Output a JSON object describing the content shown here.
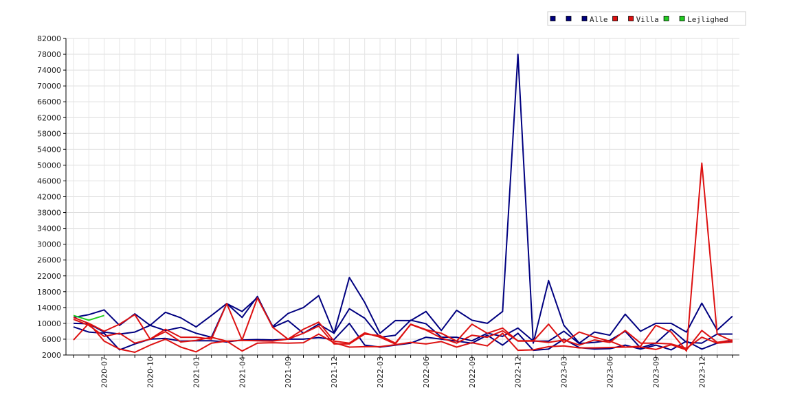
{
  "chart_data": {
    "type": "line",
    "title": "",
    "xlabel": "",
    "ylabel": "",
    "ylim": [
      2000,
      82000
    ],
    "y_ticks": [
      2000,
      6000,
      10000,
      14000,
      18000,
      22000,
      26000,
      30000,
      34000,
      38000,
      42000,
      46000,
      50000,
      54000,
      58000,
      62000,
      66000,
      70000,
      74000,
      78000,
      82000
    ],
    "x_ticks": [
      {
        "label": "2020-07",
        "index": 2
      },
      {
        "label": "2020-10",
        "index": 5
      },
      {
        "label": "2021-01",
        "index": 8
      },
      {
        "label": "2021-04",
        "index": 11
      },
      {
        "label": "2021-09",
        "index": 14
      },
      {
        "label": "2021-12",
        "index": 17
      },
      {
        "label": "2022-03",
        "index": 20
      },
      {
        "label": "2022-06",
        "index": 23
      },
      {
        "label": "2022-09",
        "index": 26
      },
      {
        "label": "2022-12",
        "index": 29
      },
      {
        "label": "2023-03",
        "index": 32
      },
      {
        "label": "2023-06",
        "index": 35
      },
      {
        "label": "2023-09",
        "index": 38
      },
      {
        "label": "2023-12",
        "index": 41
      }
    ],
    "n_points": 44,
    "grid": true,
    "legend_position": "top-right",
    "legend": [
      {
        "label": "",
        "color": "#000080"
      },
      {
        "label": "",
        "color": "#000080"
      },
      {
        "label": "Alle",
        "color": "#000080"
      },
      {
        "label": "",
        "color": "#dd1111"
      },
      {
        "label": "Villa",
        "color": "#dd1111"
      },
      {
        "label": "",
        "color": "#22cc22"
      },
      {
        "label": "Lejlighed",
        "color": "#22cc22"
      }
    ],
    "series": [
      {
        "group": "Alle",
        "color": "#000080",
        "values": [
          11500,
          12200,
          13400,
          9500,
          12400,
          9500,
          12800,
          11400,
          9100,
          12000,
          15000,
          13000,
          16500,
          9200,
          12500,
          14000,
          17000,
          7500,
          21600,
          15300,
          7500,
          10700,
          10700,
          13000,
          8200,
          13300,
          10800,
          10000,
          13000,
          78000,
          5000,
          20800,
          9500,
          5000,
          7800,
          7000,
          12300,
          8000,
          10000,
          10000,
          7800,
          15100,
          8300,
          11800
        ]
      },
      {
        "group": "Alle",
        "color": "#000080",
        "values": [
          10000,
          9900,
          7800,
          7300,
          7800,
          9500,
          8200,
          9000,
          7500,
          6500,
          15000,
          11500,
          16800,
          9000,
          10700,
          7500,
          9800,
          7500,
          13700,
          11300,
          6500,
          7000,
          10800,
          9900,
          6500,
          6500,
          5600,
          7500,
          6700,
          8800,
          5500,
          5500,
          8000,
          4900,
          5200,
          5700,
          8000,
          3800,
          5000,
          8500,
          5200,
          5000,
          7300,
          7300
        ]
      },
      {
        "group": "Alle",
        "color": "#000080",
        "values": [
          9100,
          7800,
          7500,
          3300,
          4800,
          6000,
          6200,
          5500,
          5600,
          5600,
          5300,
          5800,
          5900,
          5800,
          6000,
          6000,
          6400,
          5900,
          10000,
          4500,
          4000,
          4500,
          5000,
          6500,
          6000,
          5500,
          5000,
          7000,
          4500,
          7500,
          3200,
          3500,
          6000,
          3900,
          3500,
          3600,
          4500,
          3500,
          4500,
          3300,
          5500,
          3500,
          5000,
          5400
        ]
      },
      {
        "group": "Villa",
        "color": "#dd1111",
        "values": [
          5800,
          10000,
          8000,
          9800,
          12200,
          6000,
          8500,
          6500,
          6500,
          6000,
          15000,
          5800,
          16400,
          9000,
          6000,
          8500,
          10300,
          5500,
          5000,
          7600,
          6500,
          4800,
          9800,
          8400,
          7500,
          5500,
          9800,
          7500,
          8800,
          5500,
          5500,
          9800,
          5100,
          7800,
          6500,
          5500,
          4000,
          4200,
          9500,
          7800,
          3000,
          50500,
          7300,
          5500
        ]
      },
      {
        "group": "Villa",
        "color": "#dd1111",
        "values": [
          11500,
          10000,
          5500,
          3500,
          2700,
          4500,
          6000,
          4000,
          2800,
          5000,
          5500,
          3000,
          5000,
          5100,
          5000,
          5100,
          7300,
          5100,
          4000,
          4100,
          4100,
          4600,
          5200,
          4800,
          5400,
          4000,
          5100,
          4300,
          7500,
          3200,
          3300,
          4100,
          4300,
          3800,
          3800,
          3900,
          4000,
          4000,
          3400,
          4600,
          3300,
          8200,
          5200,
          5800
        ]
      },
      {
        "group": "Villa",
        "color": "#dd1111",
        "values": [
          11000,
          9500,
          6700,
          7500,
          5000,
          6000,
          7900,
          5300,
          5700,
          6500,
          5500,
          5700,
          5600,
          5500,
          6000,
          7500,
          9300,
          4800,
          4800,
          7300,
          6900,
          5000,
          9700,
          8300,
          6300,
          5000,
          7000,
          6500,
          8100,
          5600,
          5600,
          5200,
          5800,
          4500,
          5800,
          5200,
          8200,
          5000,
          5000,
          4800,
          3700,
          6500,
          5000,
          5300
        ]
      },
      {
        "group": "Lejlighed",
        "color": "#22cc22",
        "values": [
          12000,
          10800,
          12000,
          null,
          null,
          null,
          null,
          null,
          null,
          null,
          null,
          null,
          null,
          null,
          null,
          null,
          null,
          null,
          null,
          null,
          null,
          null,
          null,
          null,
          null,
          null,
          null,
          null,
          null,
          null,
          null,
          null,
          null,
          null,
          null,
          null,
          null,
          null,
          null,
          null,
          null,
          null,
          null,
          null
        ]
      }
    ]
  }
}
